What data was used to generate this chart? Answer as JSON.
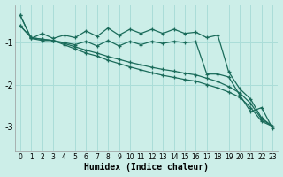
{
  "xlabel": "Humidex (Indice chaleur)",
  "background_color": "#cceee8",
  "grid_color": "#aaddd8",
  "line_color": "#1a6b5a",
  "xlim": [
    -0.5,
    23.5
  ],
  "ylim": [
    -3.6,
    -0.1
  ],
  "yticks": [
    -3,
    -2,
    -1
  ],
  "xticks": [
    0,
    1,
    2,
    3,
    4,
    5,
    6,
    7,
    8,
    9,
    10,
    11,
    12,
    13,
    14,
    15,
    16,
    17,
    18,
    19,
    20,
    21,
    22,
    23
  ],
  "series": [
    [
      -0.35,
      -0.9,
      -0.78,
      -0.9,
      -0.82,
      -0.88,
      -0.72,
      -0.85,
      -0.65,
      -0.82,
      -0.68,
      -0.78,
      -0.68,
      -0.78,
      -0.68,
      -0.78,
      -0.75,
      -0.88,
      -0.82,
      -1.7,
      -2.1,
      -2.35,
      -2.8,
      -3.0
    ],
    [
      -0.35,
      -0.9,
      -0.95,
      -0.95,
      -1.0,
      -1.05,
      -0.97,
      -1.08,
      -0.95,
      -1.08,
      -0.97,
      -1.05,
      -0.97,
      -1.02,
      -0.97,
      -1.0,
      -0.98,
      -1.75,
      -1.75,
      -1.82,
      -2.25,
      -2.65,
      -2.55,
      -3.05
    ],
    [
      -0.6,
      -0.88,
      -0.92,
      -0.95,
      -1.05,
      -1.15,
      -1.25,
      -1.32,
      -1.42,
      -1.5,
      -1.58,
      -1.65,
      -1.72,
      -1.78,
      -1.83,
      -1.88,
      -1.92,
      -2.0,
      -2.08,
      -2.18,
      -2.3,
      -2.55,
      -2.88,
      -3.0
    ],
    [
      -0.6,
      -0.88,
      -0.92,
      -0.95,
      -1.02,
      -1.1,
      -1.18,
      -1.25,
      -1.33,
      -1.4,
      -1.47,
      -1.53,
      -1.59,
      -1.64,
      -1.68,
      -1.73,
      -1.77,
      -1.85,
      -1.93,
      -2.05,
      -2.2,
      -2.45,
      -2.83,
      -3.0
    ]
  ]
}
